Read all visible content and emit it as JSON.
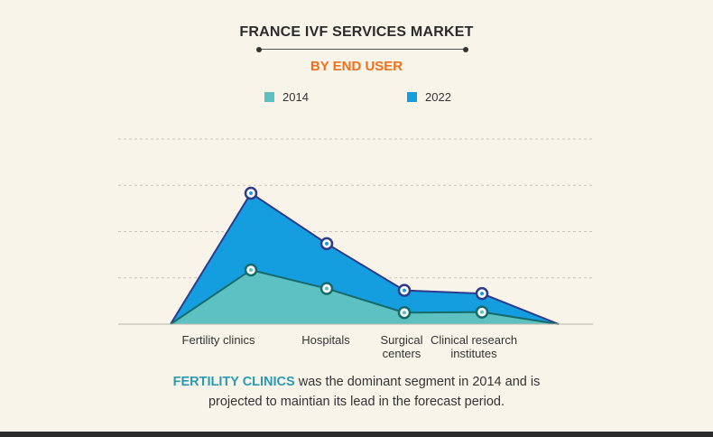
{
  "title": "FRANCE IVF SERVICES MARKET",
  "subtitle": "BY END USER",
  "legend": [
    {
      "label": "2014",
      "color": "#5cc1c0"
    },
    {
      "label": "2022",
      "color": "#149ddf"
    }
  ],
  "caption": {
    "highlight": "FERTILITY CLINICS",
    "line1_rest": " was the dominant segment in 2014 and is",
    "line2": "projected to maintian its lead in the forecast period."
  },
  "colors": {
    "area_2014": "#5cc1c0",
    "area_2022": "#149ddf",
    "line_2014": "#156b6b",
    "line_2022": "#2e3a8c",
    "highlight": "#2a9ab2",
    "accent": "#f0701a"
  },
  "chart_data": {
    "type": "area",
    "categories": [
      "",
      "Fertility clinics",
      "Hospitals",
      "Surgical centers",
      "Clinical research institutes",
      ""
    ],
    "category_labels": [
      {
        "lines": [
          "Fertility clinics"
        ]
      },
      {
        "lines": [
          "Hospitals"
        ]
      },
      {
        "lines": [
          "Surgical",
          "centers"
        ]
      },
      {
        "lines": [
          "Clinical research",
          "institutes"
        ]
      }
    ],
    "series": [
      {
        "name": "2014",
        "values": [
          0,
          1.17,
          0.77,
          0.25,
          0.26,
          0
        ]
      },
      {
        "name": "2022",
        "values": [
          0,
          2.83,
          1.74,
          0.73,
          0.66,
          0
        ]
      }
    ],
    "ylim": [
      0,
      4
    ],
    "gridlines": [
      1,
      2,
      3,
      4
    ],
    "marked_points": [
      1,
      2,
      3,
      4
    ],
    "stacked": false,
    "legend_position": "top",
    "xlabel": "",
    "ylabel": ""
  }
}
